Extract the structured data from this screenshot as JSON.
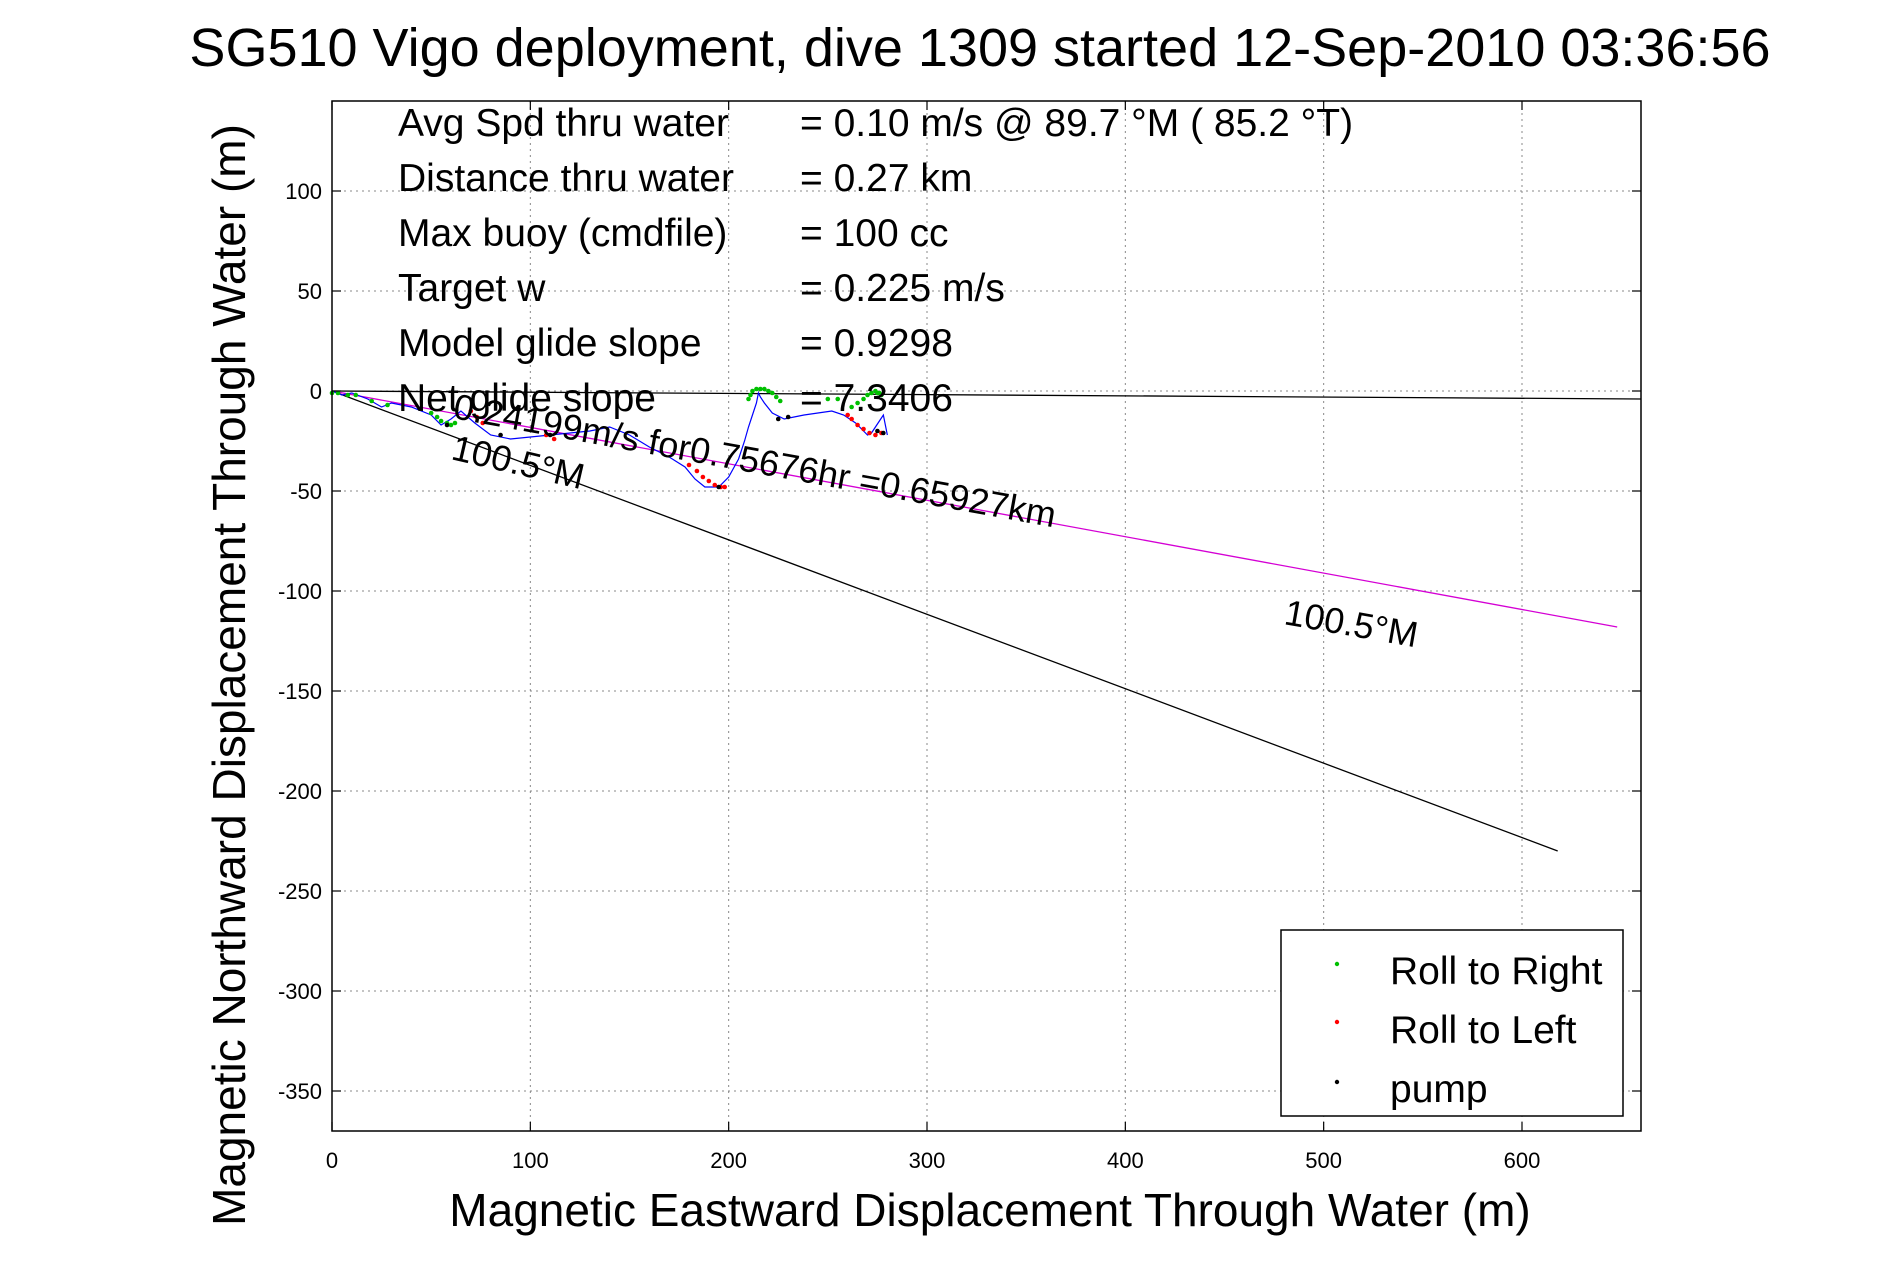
{
  "chart_data": {
    "type": "line",
    "title": "SG510 Vigo deployment, dive 1309 started 12-Sep-2010 03:36:56",
    "xlabel": "Magnetic Eastward Displacement Through Water (m)",
    "ylabel": "Magnetic Northward Displacement Through Water (m)",
    "xlim": [
      0,
      660
    ],
    "ylim": [
      -370,
      145
    ],
    "xticks": [
      0,
      100,
      200,
      300,
      400,
      500,
      600
    ],
    "yticks": [
      100,
      50,
      0,
      -50,
      -100,
      -150,
      -200,
      -250,
      -300,
      -350
    ],
    "xtick_labels": [
      "0",
      "100",
      "200",
      "300",
      "400",
      "500",
      "600"
    ],
    "ytick_labels": [
      "100",
      "50",
      "0",
      "-50",
      "-100",
      "-150",
      "-200",
      "-250",
      "-300",
      "-350"
    ],
    "grid": true,
    "info_lines": [
      {
        "label": "Avg Spd thru water",
        "value": "=  0.10 m/s @  89.7 °M ( 85.2 °T)"
      },
      {
        "label": "Distance thru water",
        "value": "=  0.27 km"
      },
      {
        "label": "Max buoy (cmdfile)",
        "value": "= 100 cc"
      },
      {
        "label": "Target w",
        "value": "= 0.225 m/s"
      },
      {
        "label": "Model glide slope",
        "value": "= 0.9298"
      },
      {
        "label": "Net glide slope",
        "value": "= 7.3406"
      }
    ],
    "annotations": {
      "current_text": "0.24199m/s for0.75676hr =0.65927km",
      "heading_near": "100.5°M",
      "heading_far": "100.5°M"
    },
    "lines": [
      {
        "name": "horizontal reference",
        "color": "#000000",
        "x": [
          0,
          660
        ],
        "y": [
          0,
          -4
        ]
      },
      {
        "name": "heading line",
        "color": "#000000",
        "x": [
          0,
          618
        ],
        "y": [
          0,
          -230
        ]
      },
      {
        "name": "current",
        "color": "#d400d4",
        "x": [
          0,
          648
        ],
        "y": [
          0,
          -118
        ]
      }
    ],
    "series": [
      {
        "name": "track",
        "color": "#0000ff",
        "x": [
          0,
          5,
          10,
          18,
          25,
          30,
          40,
          50,
          55,
          60,
          65,
          72,
          80,
          90,
          100,
          110,
          120,
          130,
          140,
          150,
          160,
          170,
          178,
          183,
          188,
          195,
          200,
          205,
          208,
          210,
          212,
          214,
          215,
          216,
          218,
          222,
          228,
          238,
          245,
          252,
          258,
          264,
          268,
          270,
          272,
          274,
          276,
          278,
          279,
          280
        ],
        "y": [
          0,
          -2,
          -1,
          -4,
          -8,
          -6,
          -8,
          -12,
          -17,
          -14,
          -10,
          -16,
          -22,
          -24,
          -23,
          -22,
          -21,
          -20,
          -18,
          -22,
          -28,
          -33,
          -38,
          -44,
          -48,
          -48,
          -43,
          -34,
          -25,
          -18,
          -12,
          -6,
          -1,
          -3,
          -6,
          -11,
          -14,
          -12,
          -11,
          -10,
          -12,
          -16,
          -20,
          -22,
          -21,
          -18,
          -15,
          -12,
          -17,
          -22
        ]
      },
      {
        "name": "Roll to Right",
        "color": "#00c000",
        "x": [
          0,
          3,
          8,
          12,
          20,
          28,
          50,
          53,
          55,
          58,
          60,
          62,
          210,
          211,
          212,
          214,
          216,
          218,
          220,
          222,
          224,
          226,
          250,
          255,
          262,
          265,
          268,
          270,
          272,
          274,
          275,
          276,
          277
        ],
        "y": [
          -1,
          -1,
          -2,
          -2,
          -5,
          -7,
          -11,
          -13,
          -15,
          -16,
          -17,
          -16,
          -4,
          -2,
          0,
          1,
          1,
          1,
          0,
          -1,
          -3,
          -5,
          -4,
          -4,
          -8,
          -6,
          -4,
          -2,
          -1,
          0,
          -1,
          -1,
          -2
        ]
      },
      {
        "name": "Roll to Left",
        "color": "#ff0000",
        "x": [
          70,
          73,
          76,
          108,
          112,
          180,
          184,
          187,
          190,
          193,
          196,
          198,
          260,
          262,
          265,
          268,
          271,
          274,
          277
        ],
        "y": [
          -10,
          -13,
          -16,
          -22,
          -24,
          -37,
          -40,
          -43,
          -45,
          -47,
          -48,
          -48,
          -12,
          -14,
          -17,
          -19,
          -21,
          -22,
          -21
        ]
      },
      {
        "name": "pump",
        "color": "#000000",
        "x": [
          58,
          85,
          110,
          195,
          225,
          230,
          275,
          278
        ],
        "y": [
          -17,
          -22,
          -22,
          -48,
          -14,
          -13,
          -20,
          -21
        ]
      }
    ],
    "legend": {
      "position": "bottom-right",
      "entries": [
        "Roll to Right",
        "Roll to Left",
        "pump"
      ]
    }
  }
}
